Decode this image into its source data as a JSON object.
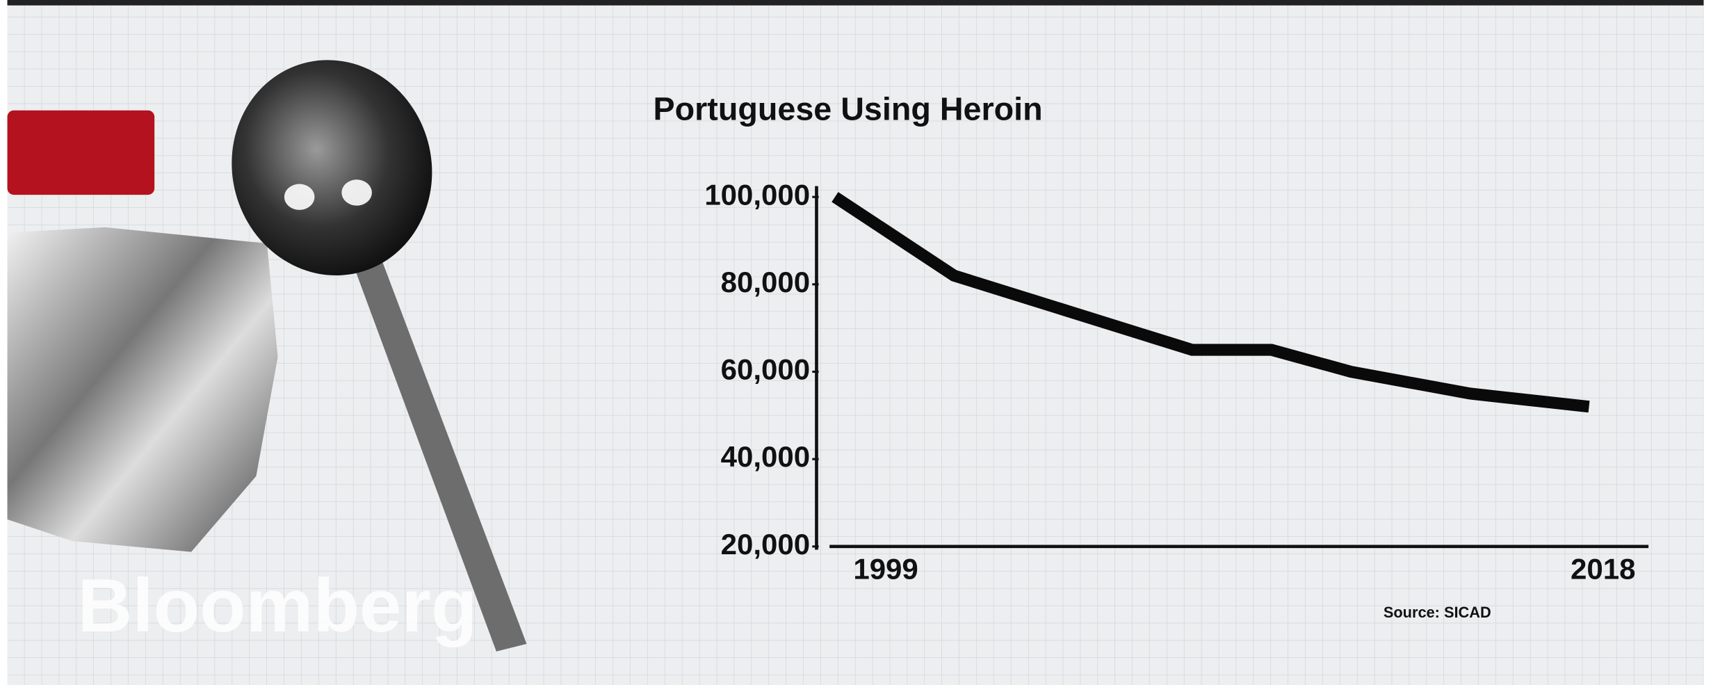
{
  "chart_data": {
    "type": "line",
    "title": "Portuguese Using Heroin",
    "source": "Source: SICAD",
    "watermark": "Bloomberg",
    "x": [
      1999,
      2002,
      2008,
      2010,
      2012,
      2015,
      2018
    ],
    "series": [
      {
        "name": null,
        "color": "#0a0a0a",
        "values": [
          100000,
          82000,
          65000,
          65000,
          60000,
          55000,
          52000
        ]
      }
    ],
    "xlim": [
      1999,
      2018
    ],
    "xticks": [
      1999,
      2018
    ],
    "ylim": [
      20000,
      100000
    ],
    "yticks": [
      {
        "value": 20000,
        "label": "20,000"
      },
      {
        "value": 40000,
        "label": "40,000"
      },
      {
        "value": 60000,
        "label": "60,000"
      },
      {
        "value": 80000,
        "label": "80,000"
      },
      {
        "value": 100000,
        "label": "100,000"
      }
    ],
    "grid": false
  }
}
